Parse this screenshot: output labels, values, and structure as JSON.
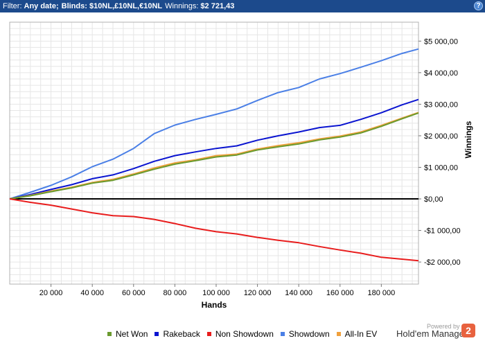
{
  "filter": {
    "prefix": "Filter:",
    "date": "Any date;",
    "blinds": "Blinds: $10NL,£10NL,€10NL",
    "winnings_label": "Winnings:",
    "winnings_value": "$2 721,43"
  },
  "help_label": "?",
  "chart_data": {
    "type": "line",
    "xlabel": "Hands",
    "ylabel": "Winnings",
    "xlim": [
      0,
      198000
    ],
    "ylim": [
      -2700,
      5600
    ],
    "x_ticks": [
      20000,
      40000,
      60000,
      80000,
      100000,
      120000,
      140000,
      160000,
      180000
    ],
    "x_tick_labels": [
      "20 000",
      "40 000",
      "60 000",
      "80 000",
      "100 000",
      "120 000",
      "140 000",
      "160 000",
      "180 000"
    ],
    "y_ticks": [
      -2000,
      -1000,
      0,
      1000,
      2000,
      3000,
      4000,
      5000
    ],
    "y_tick_labels": [
      "-$2 000,00",
      "-$1 000,00",
      "$0,00",
      "$1 000,00",
      "$2 000,00",
      "$3 000,00",
      "$4 000,00",
      "$5 000,00"
    ],
    "grid": true,
    "legend_position": "bottom",
    "series": [
      {
        "name": "Showdown",
        "color": "#4a7fe6",
        "x": [
          0,
          10000,
          20000,
          30000,
          40000,
          50000,
          60000,
          70000,
          80000,
          90000,
          100000,
          110000,
          120000,
          130000,
          140000,
          150000,
          160000,
          170000,
          180000,
          190000,
          198000
        ],
        "y": [
          0,
          210,
          430,
          700,
          1020,
          1260,
          1600,
          2070,
          2340,
          2520,
          2680,
          2850,
          3120,
          3370,
          3530,
          3800,
          3970,
          4170,
          4380,
          4610,
          4750
        ]
      },
      {
        "name": "Rakeback",
        "color": "#0a14d0",
        "x": [
          0,
          10000,
          20000,
          30000,
          40000,
          50000,
          60000,
          70000,
          80000,
          90000,
          100000,
          110000,
          120000,
          130000,
          140000,
          150000,
          160000,
          170000,
          180000,
          190000,
          198000
        ],
        "y": [
          0,
          140,
          300,
          450,
          640,
          760,
          960,
          1190,
          1370,
          1490,
          1600,
          1680,
          1860,
          2000,
          2120,
          2260,
          2330,
          2520,
          2730,
          2980,
          3150
        ]
      },
      {
        "name": "All-In EV",
        "color": "#f0a03c",
        "x": [
          0,
          10000,
          20000,
          30000,
          40000,
          50000,
          60000,
          70000,
          80000,
          90000,
          100000,
          110000,
          120000,
          130000,
          140000,
          150000,
          160000,
          170000,
          180000,
          190000,
          198000
        ],
        "y": [
          0,
          110,
          250,
          370,
          520,
          620,
          790,
          980,
          1140,
          1240,
          1370,
          1420,
          1580,
          1690,
          1780,
          1900,
          1990,
          2120,
          2330,
          2560,
          2740
        ]
      },
      {
        "name": "Net Won",
        "color": "#6a9a2e",
        "x": [
          0,
          10000,
          20000,
          30000,
          40000,
          50000,
          60000,
          70000,
          80000,
          90000,
          100000,
          110000,
          120000,
          130000,
          140000,
          150000,
          160000,
          170000,
          180000,
          190000,
          198000
        ],
        "y": [
          0,
          100,
          230,
          350,
          500,
          590,
          760,
          940,
          1100,
          1210,
          1330,
          1390,
          1550,
          1650,
          1740,
          1870,
          1960,
          2090,
          2300,
          2540,
          2721
        ]
      },
      {
        "name": "Non Showdown",
        "color": "#e81c1c",
        "x": [
          0,
          10000,
          20000,
          30000,
          40000,
          50000,
          60000,
          70000,
          80000,
          90000,
          100000,
          110000,
          120000,
          130000,
          140000,
          150000,
          160000,
          170000,
          180000,
          190000,
          198000
        ],
        "y": [
          0,
          -110,
          -200,
          -320,
          -440,
          -530,
          -560,
          -650,
          -780,
          -930,
          -1040,
          -1110,
          -1220,
          -1310,
          -1390,
          -1510,
          -1620,
          -1720,
          -1850,
          -1910,
          -1960
        ]
      }
    ],
    "zero_line_color": "#000000"
  },
  "legend": [
    {
      "label": "Net Won",
      "color": "#6a9a2e"
    },
    {
      "label": "Rakeback",
      "color": "#0a14d0"
    },
    {
      "label": "Non Showdown",
      "color": "#e81c1c"
    },
    {
      "label": "Showdown",
      "color": "#4a7fe6"
    },
    {
      "label": "All-In EV",
      "color": "#f0a03c"
    }
  ],
  "branding": {
    "powered_by": "Powered by",
    "name": "Hold'em Manager",
    "logo_text": "2"
  }
}
